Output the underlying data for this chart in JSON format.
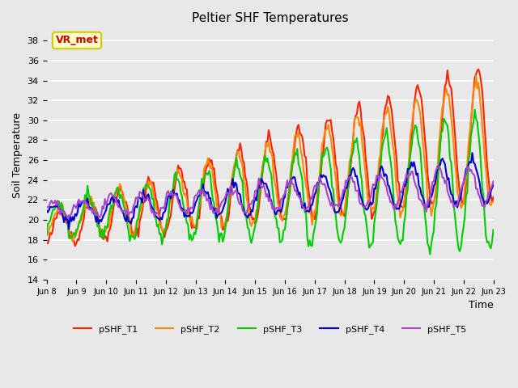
{
  "title": "Peltier SHF Temperatures",
  "xlabel": "Time",
  "ylabel": "Soil Temperature",
  "ylim": [
    14,
    39
  ],
  "xlim": [
    0,
    360
  ],
  "bg_color": "#e8e8e8",
  "plot_bg": "#e8e8e8",
  "annotation_text": "VR_met",
  "annotation_bg": "#ffffcc",
  "annotation_border": "#cccc00",
  "annotation_text_color": "#cc0000",
  "series": {
    "pSHF_T1": {
      "color": "#ff2200",
      "lw": 1.5
    },
    "pSHF_T2": {
      "color": "#ff8800",
      "lw": 1.5
    },
    "pSHF_T3": {
      "color": "#00cc00",
      "lw": 1.5
    },
    "pSHF_T4": {
      "color": "#0000cc",
      "lw": 1.5
    },
    "pSHF_T5": {
      "color": "#aa44cc",
      "lw": 1.5
    }
  },
  "xtick_labels": [
    "Jun 8",
    "Jun 9",
    "Jun 10",
    "Jun 11",
    "Jun 12",
    "Jun 13",
    "Jun 14",
    "Jun 15",
    "Jun 16",
    "Jun 17",
    "Jun 18",
    "Jun 19",
    "Jun 20",
    "Jun 21",
    "Jun 22",
    "Jun 23"
  ],
  "ytick_labels": [
    14,
    16,
    18,
    20,
    22,
    24,
    26,
    28,
    30,
    32,
    34,
    36,
    38
  ]
}
